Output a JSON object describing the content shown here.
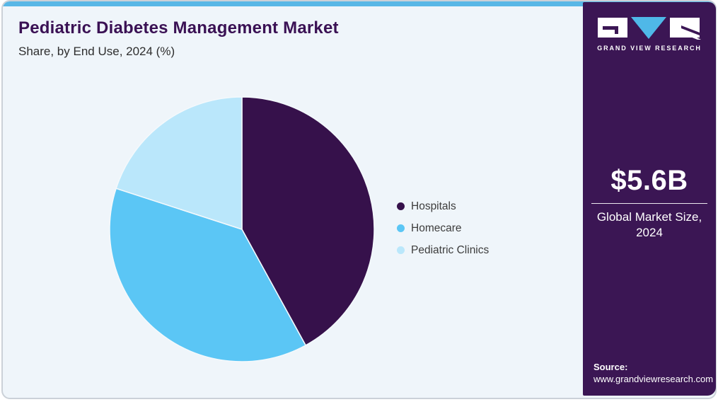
{
  "header": {
    "title": "Pediatric Diabetes Management Market",
    "subtitle": "Share, by End Use, 2024 (%)"
  },
  "chart_data": {
    "type": "pie",
    "title": "Pediatric Diabetes Management Market Share, by End Use, 2024 (%)",
    "categories": [
      "Hospitals",
      "Homecare",
      "Pediatric Clinics"
    ],
    "values": [
      42,
      38,
      20
    ],
    "unit": "%",
    "colors": [
      "#36114B",
      "#5BC6F5",
      "#BAE7FB"
    ],
    "legend_position": "right",
    "start_angle_deg": 0,
    "direction": "clockwise"
  },
  "sidebar": {
    "logo_text": "GRAND VIEW RESEARCH",
    "market_size_value": "$5.6B",
    "market_size_label_line1": "Global Market Size,",
    "market_size_label_line2": "2024",
    "source_label": "Source:",
    "source_url": "www.grandviewresearch.com"
  },
  "colors": {
    "accent_bar": "#58B7E6",
    "card_background": "#EFF5FA",
    "card_border": "#CBD1D8",
    "sidebar_background": "#3B1654",
    "title_text": "#3A1154",
    "legend_text": "#3D3D3D",
    "logo_v_blue": "#4FB8E8",
    "slice_separator": "#F4F9FC"
  }
}
